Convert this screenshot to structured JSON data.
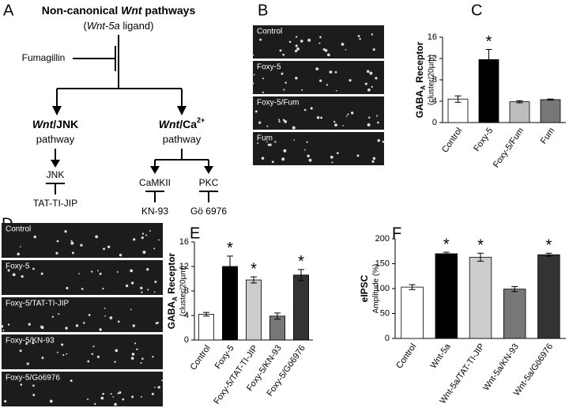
{
  "panel_labels": [
    "A",
    "B",
    "C",
    "D",
    "E",
    "F"
  ],
  "diagram": {
    "title": [
      "Non-canonical ",
      "Wnt",
      " pathways"
    ],
    "ligand": [
      "(",
      "Wnt-5a",
      " ligand)"
    ],
    "inhibitor_top": "Fumagillin",
    "left_branch": [
      "Wnt",
      "/JNK"
    ],
    "right_branch": [
      "Wnt",
      "/Ca",
      "2+"
    ],
    "pathway_left": "pathway",
    "pathway_right": "pathway",
    "targets": [
      "JNK",
      "CaMKII",
      "PKC"
    ],
    "inhibitors": [
      "TAT-TI-JIP",
      "KN-93",
      "Gö 6976"
    ]
  },
  "micrographs_B": [
    "Control",
    "Foxy-5",
    "Foxy-5/Fum",
    "Fum"
  ],
  "micrographs_D": [
    "Control",
    "Foxy-5",
    "Foxy-5/TAT-TI-JIP",
    "Foxy-5/KN-93",
    "Foxy-5/Gö6976"
  ],
  "chart_data": [
    {
      "type": "bar",
      "ylabel": [
        "GABA",
        "A",
        " Receptor"
      ],
      "ylabel2": "(cluster/20µm)",
      "categories": [
        "Control",
        "Foxy-5",
        "Foxy-5/Fum",
        "Fum"
      ],
      "values": [
        4.4,
        11.8,
        3.9,
        4.3
      ],
      "errors": [
        0.6,
        1.9,
        0.2,
        0.1
      ],
      "colors": [
        "#ffffff",
        "#000000",
        "#bdbdbd",
        "#777777"
      ],
      "markers": [
        null,
        "*",
        null,
        null
      ],
      "ylim": [
        0,
        16
      ],
      "yticks": [
        0,
        4,
        8,
        12,
        16
      ]
    },
    {
      "type": "bar",
      "ylabel": [
        "GABA",
        "A",
        " Receptor"
      ],
      "ylabel2": "(cluster/20µm)",
      "categories": [
        "Control",
        "Foxy-5",
        "Foxy-5/TAT-TI-JIP",
        "Foxy-5/KN-93",
        "Foxy-5/Gö6976"
      ],
      "values": [
        4.2,
        12.0,
        9.8,
        3.9,
        10.6
      ],
      "errors": [
        0.3,
        1.7,
        0.5,
        0.5,
        0.9
      ],
      "colors": [
        "#ffffff",
        "#000000",
        "#cccccc",
        "#777777",
        "#333333"
      ],
      "markers": [
        null,
        "*",
        "*",
        null,
        "*"
      ],
      "ylim": [
        0,
        16
      ],
      "yticks": [
        0,
        4,
        8,
        12,
        16
      ]
    },
    {
      "type": "bar",
      "ylabel": [
        "eIPSC"
      ],
      "ylabel2": "Amplitude (%)",
      "categories": [
        "Control",
        "Wnt-5a",
        "Wnt-5a/TAT-TI-JIP",
        "Wnt-5a/KN-93",
        "Wnt-5a/Gö6976"
      ],
      "values": [
        103,
        170,
        163,
        99,
        168
      ],
      "errors": [
        5,
        3,
        8,
        5,
        3
      ],
      "colors": [
        "#ffffff",
        "#000000",
        "#cccccc",
        "#777777",
        "#333333"
      ],
      "markers": [
        null,
        "*",
        "*",
        null,
        "*"
      ],
      "ylim": [
        0,
        200
      ],
      "yticks": [
        0,
        50,
        100,
        150,
        200
      ]
    }
  ]
}
